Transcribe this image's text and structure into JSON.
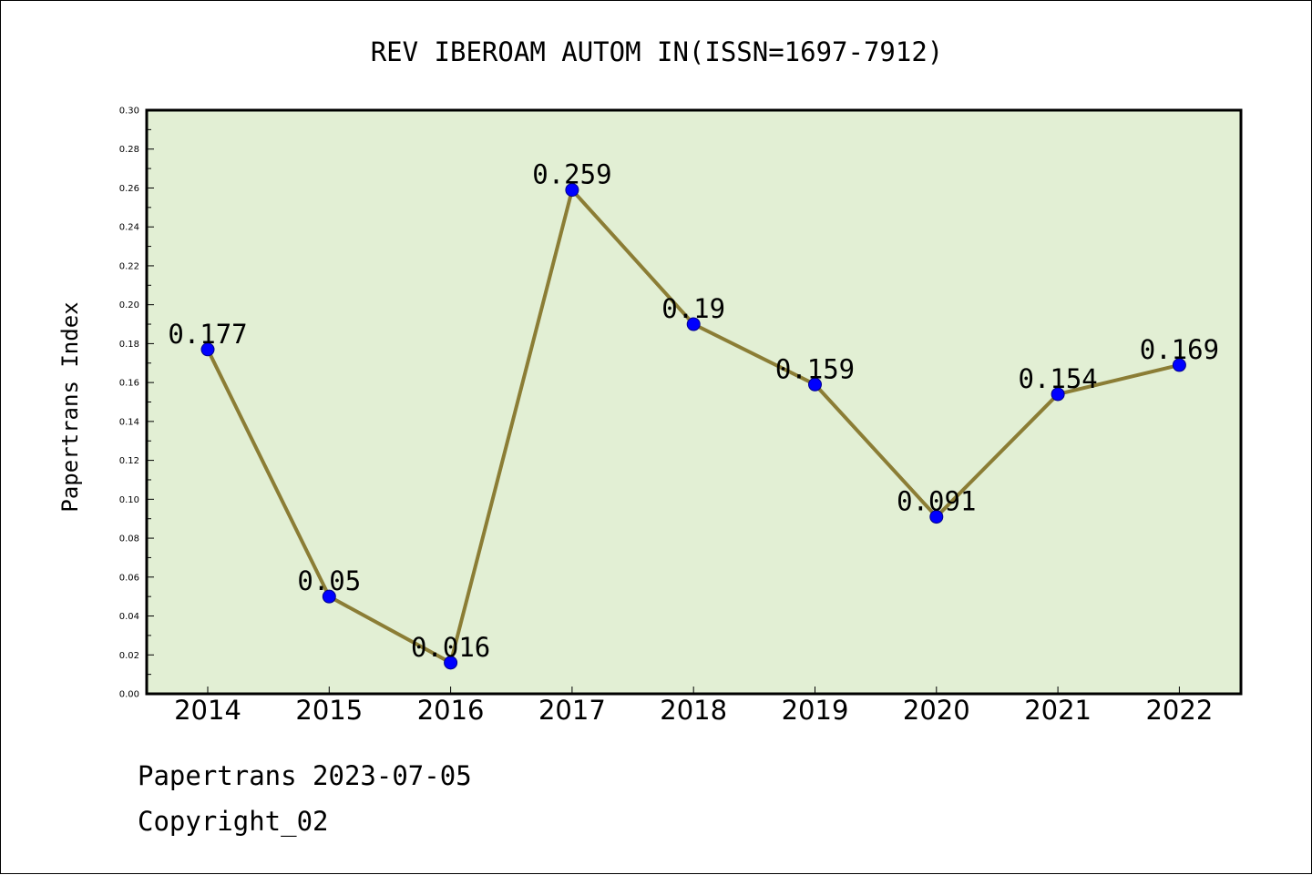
{
  "chart_data": {
    "type": "line",
    "title": "REV IBEROAM AUTOM IN(ISSN=1697-7912)",
    "xlabel": "",
    "ylabel": "Papertrans Index",
    "categories": [
      "2014",
      "2015",
      "2016",
      "2017",
      "2018",
      "2019",
      "2020",
      "2021",
      "2022"
    ],
    "series": [
      {
        "values": [
          0.177,
          0.05,
          0.016,
          0.259,
          0.19,
          0.159,
          0.091,
          0.154,
          0.169
        ],
        "data_labels": [
          "0.177",
          "0.05",
          "0.016",
          "0.259",
          "0.19",
          "0.159",
          "0.091",
          "0.154",
          "0.169"
        ]
      }
    ],
    "ylim": [
      0.0,
      0.3
    ],
    "yticks": [
      "0.00",
      "0.02",
      "0.04",
      "0.06",
      "0.08",
      "0.10",
      "0.12",
      "0.14",
      "0.16",
      "0.18",
      "0.20",
      "0.22",
      "0.24",
      "0.26",
      "0.28",
      "0.30"
    ],
    "grid": false,
    "legend": "none",
    "colors": {
      "plot_background": "#e2efd4",
      "line": "#8b7d35",
      "marker": "#0000ff"
    }
  },
  "footer": {
    "line1": "Papertrans 2023-07-05",
    "line2": "Copyright_02"
  }
}
